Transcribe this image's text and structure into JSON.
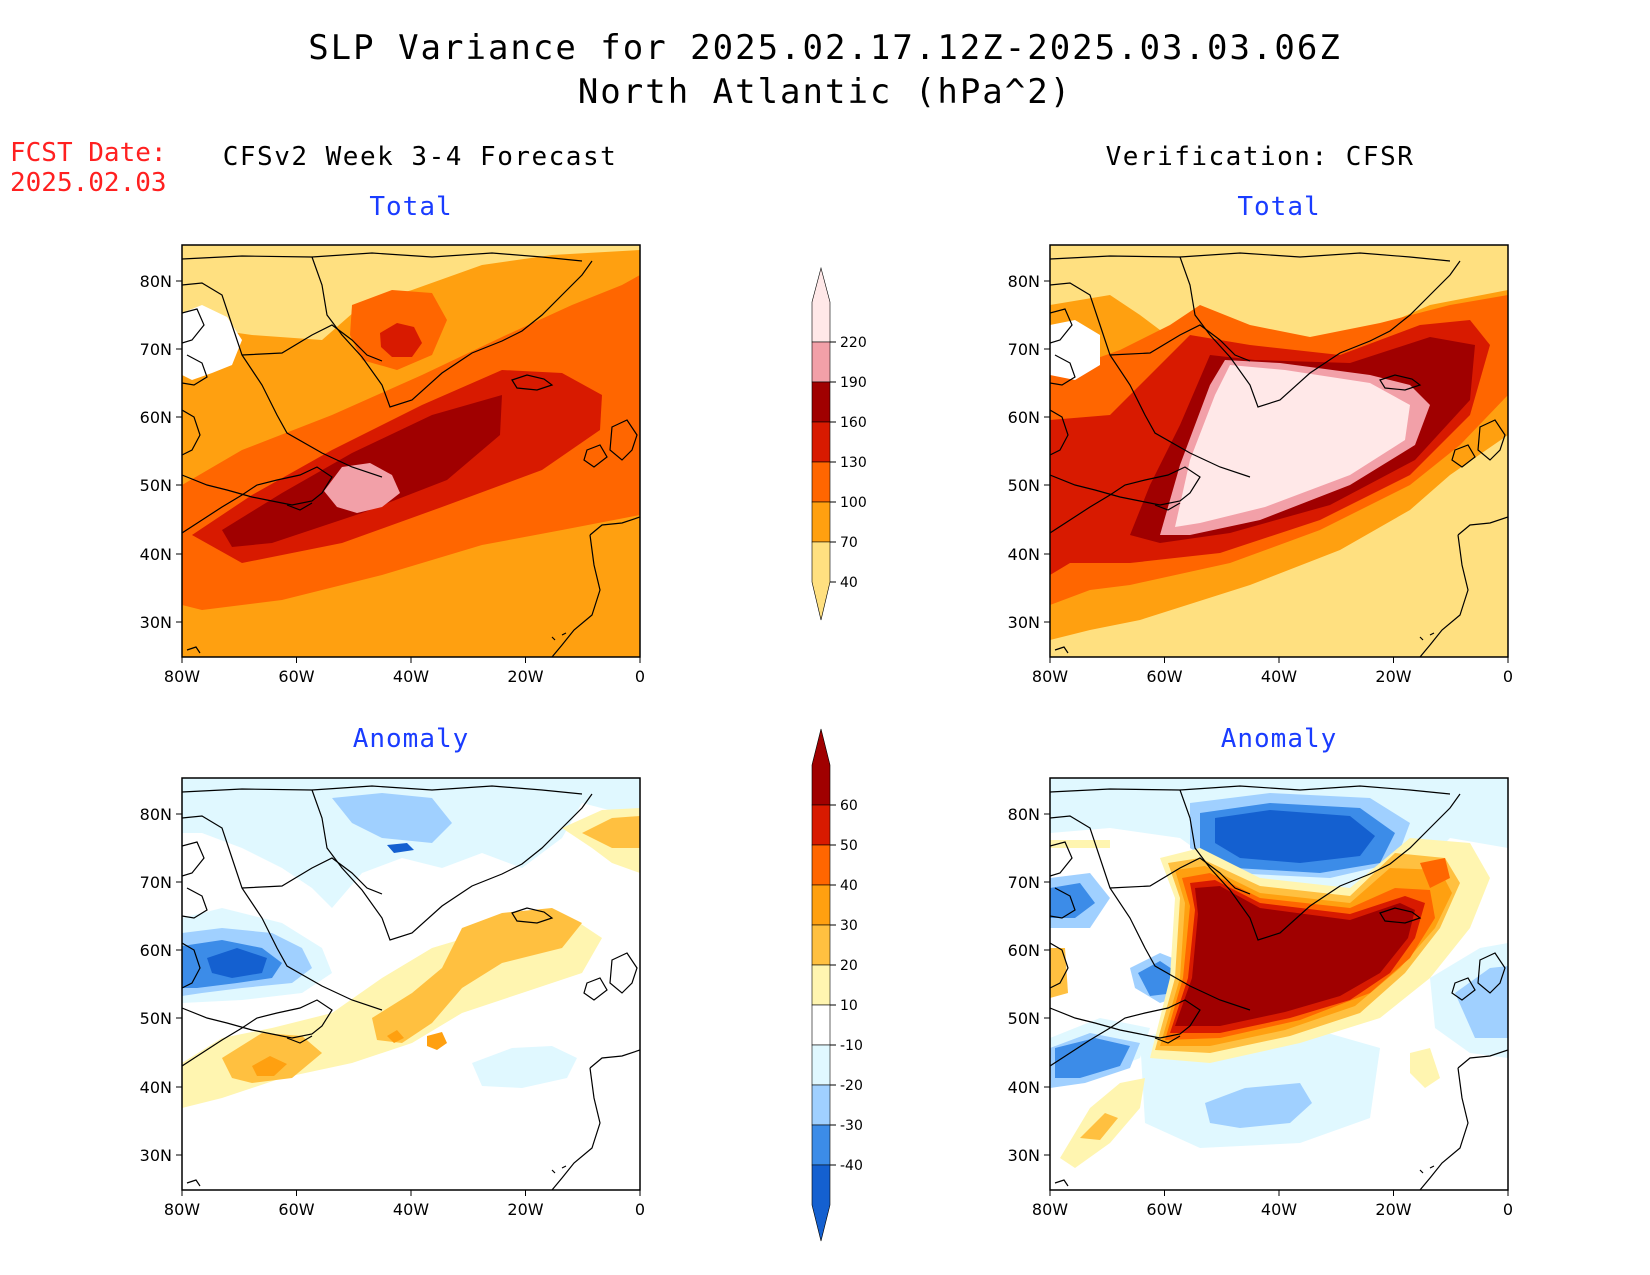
{
  "header": {
    "title_line1": "SLP Variance for 2025.02.17.12Z-2025.03.03.06Z",
    "title_line2": "North Atlantic (hPa^2)",
    "fcst_label": "FCST Date:",
    "fcst_date": "2025.02.03"
  },
  "columns": {
    "left": "CFSv2 Week 3-4 Forecast",
    "right": "Verification: CFSR"
  },
  "panels": {
    "top_left": "Total",
    "top_right": "Total",
    "bottom_left": "Anomaly",
    "bottom_right": "Anomaly"
  },
  "axes": {
    "lat_labels": [
      "80N",
      "70N",
      "60N",
      "50N",
      "40N",
      "30N"
    ],
    "lon_labels": [
      "80W",
      "60W",
      "40W",
      "20W",
      "0"
    ]
  },
  "colorbars": {
    "total": {
      "levels": [
        "220",
        "190",
        "160",
        "130",
        "100",
        "70",
        "40"
      ],
      "colors": [
        "#ffe8e8",
        "#f2a0a8",
        "#a00000",
        "#d81a00",
        "#ff6600",
        "#ffa010",
        "#ffe080"
      ]
    },
    "anomaly": {
      "levels": [
        "60",
        "50",
        "40",
        "30",
        "20",
        "10",
        "-10",
        "-20",
        "-30",
        "-40"
      ],
      "colors": [
        "#a00000",
        "#d81a00",
        "#ff6600",
        "#ffa010",
        "#ffc040",
        "#fff5b0",
        "#ffffff",
        "#e0f8ff",
        "#a0d0ff",
        "#3c8ce8",
        "#1460d0"
      ]
    }
  }
}
